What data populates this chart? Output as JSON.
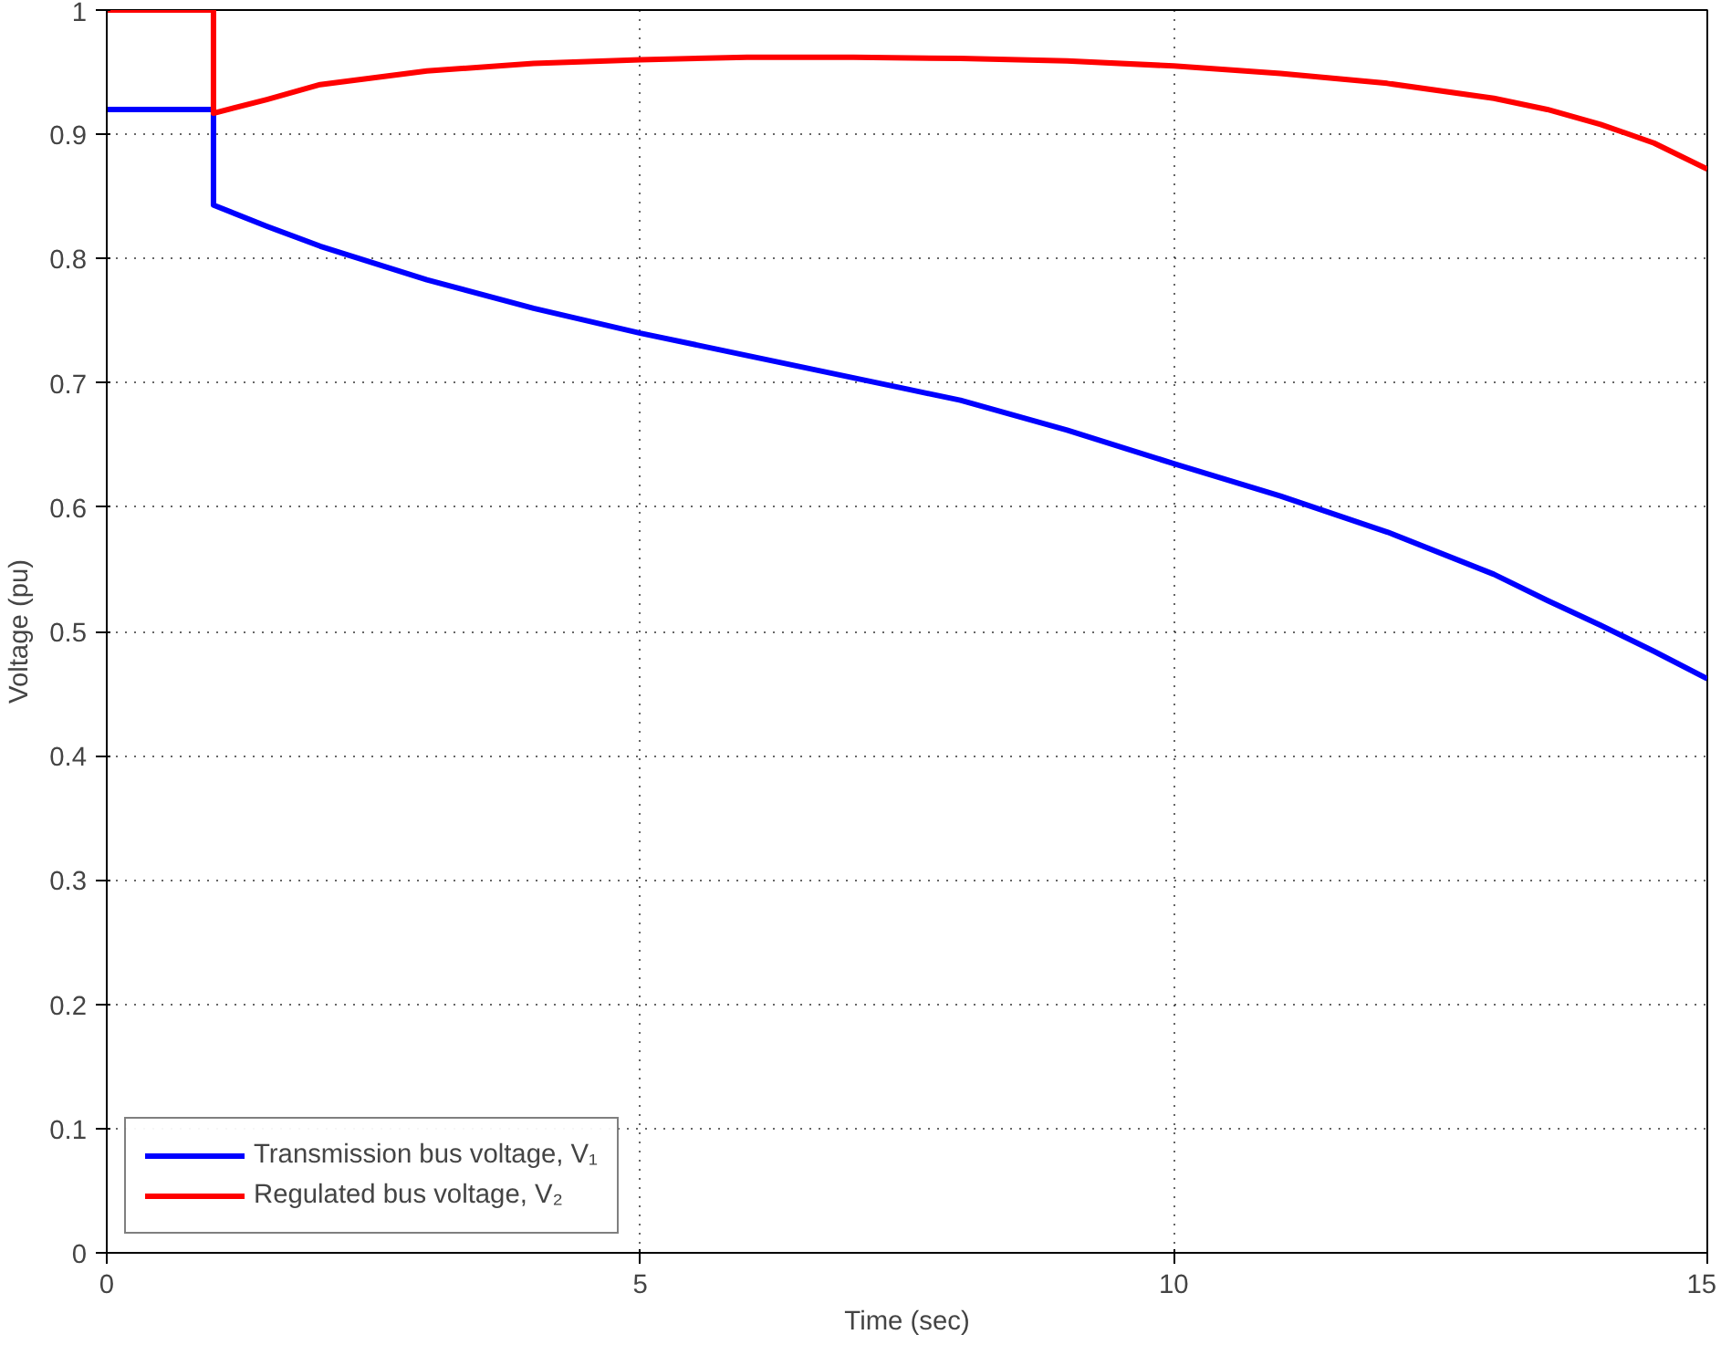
{
  "chart_data": {
    "type": "line",
    "xlabel": "Time (sec)",
    "ylabel": "Voltage (pu)",
    "xlim": [
      0,
      15
    ],
    "ylim": [
      0,
      1
    ],
    "xticks": [
      0,
      5,
      10,
      15
    ],
    "yticks": [
      0,
      0.1,
      0.2,
      0.3,
      0.4,
      0.5,
      0.6,
      0.7,
      0.8,
      0.9,
      1
    ],
    "grid": true,
    "legend": "bottom left",
    "line_style": "solid",
    "marker": "none",
    "series": [
      {
        "name": "Transmission bus voltage, V₁",
        "color": "#0000ff",
        "x": [
          0,
          1,
          1,
          1.5,
          2,
          3,
          4,
          5,
          6,
          7,
          7.5,
          8,
          9,
          10,
          11,
          12,
          13,
          13.5,
          14,
          14.5,
          15
        ],
        "values": [
          0.92,
          0.92,
          0.843,
          0.826,
          0.81,
          0.783,
          0.76,
          0.74,
          0.722,
          0.704,
          0.695,
          0.686,
          0.662,
          0.635,
          0.609,
          0.58,
          0.546,
          0.525,
          0.505,
          0.484,
          0.462
        ]
      },
      {
        "name": "Regulated bus voltage, V₂",
        "color": "#ff0000",
        "x": [
          0,
          1,
          1,
          1.5,
          2,
          3,
          4,
          5,
          6,
          7,
          8,
          9,
          10,
          11,
          12,
          13,
          13.5,
          14,
          14.5,
          15
        ],
        "values": [
          1,
          1,
          0.917,
          0.928,
          0.94,
          0.951,
          0.957,
          0.96,
          0.962,
          0.962,
          0.961,
          0.959,
          0.955,
          0.949,
          0.941,
          0.929,
          0.92,
          0.908,
          0.893,
          0.872
        ]
      }
    ]
  }
}
